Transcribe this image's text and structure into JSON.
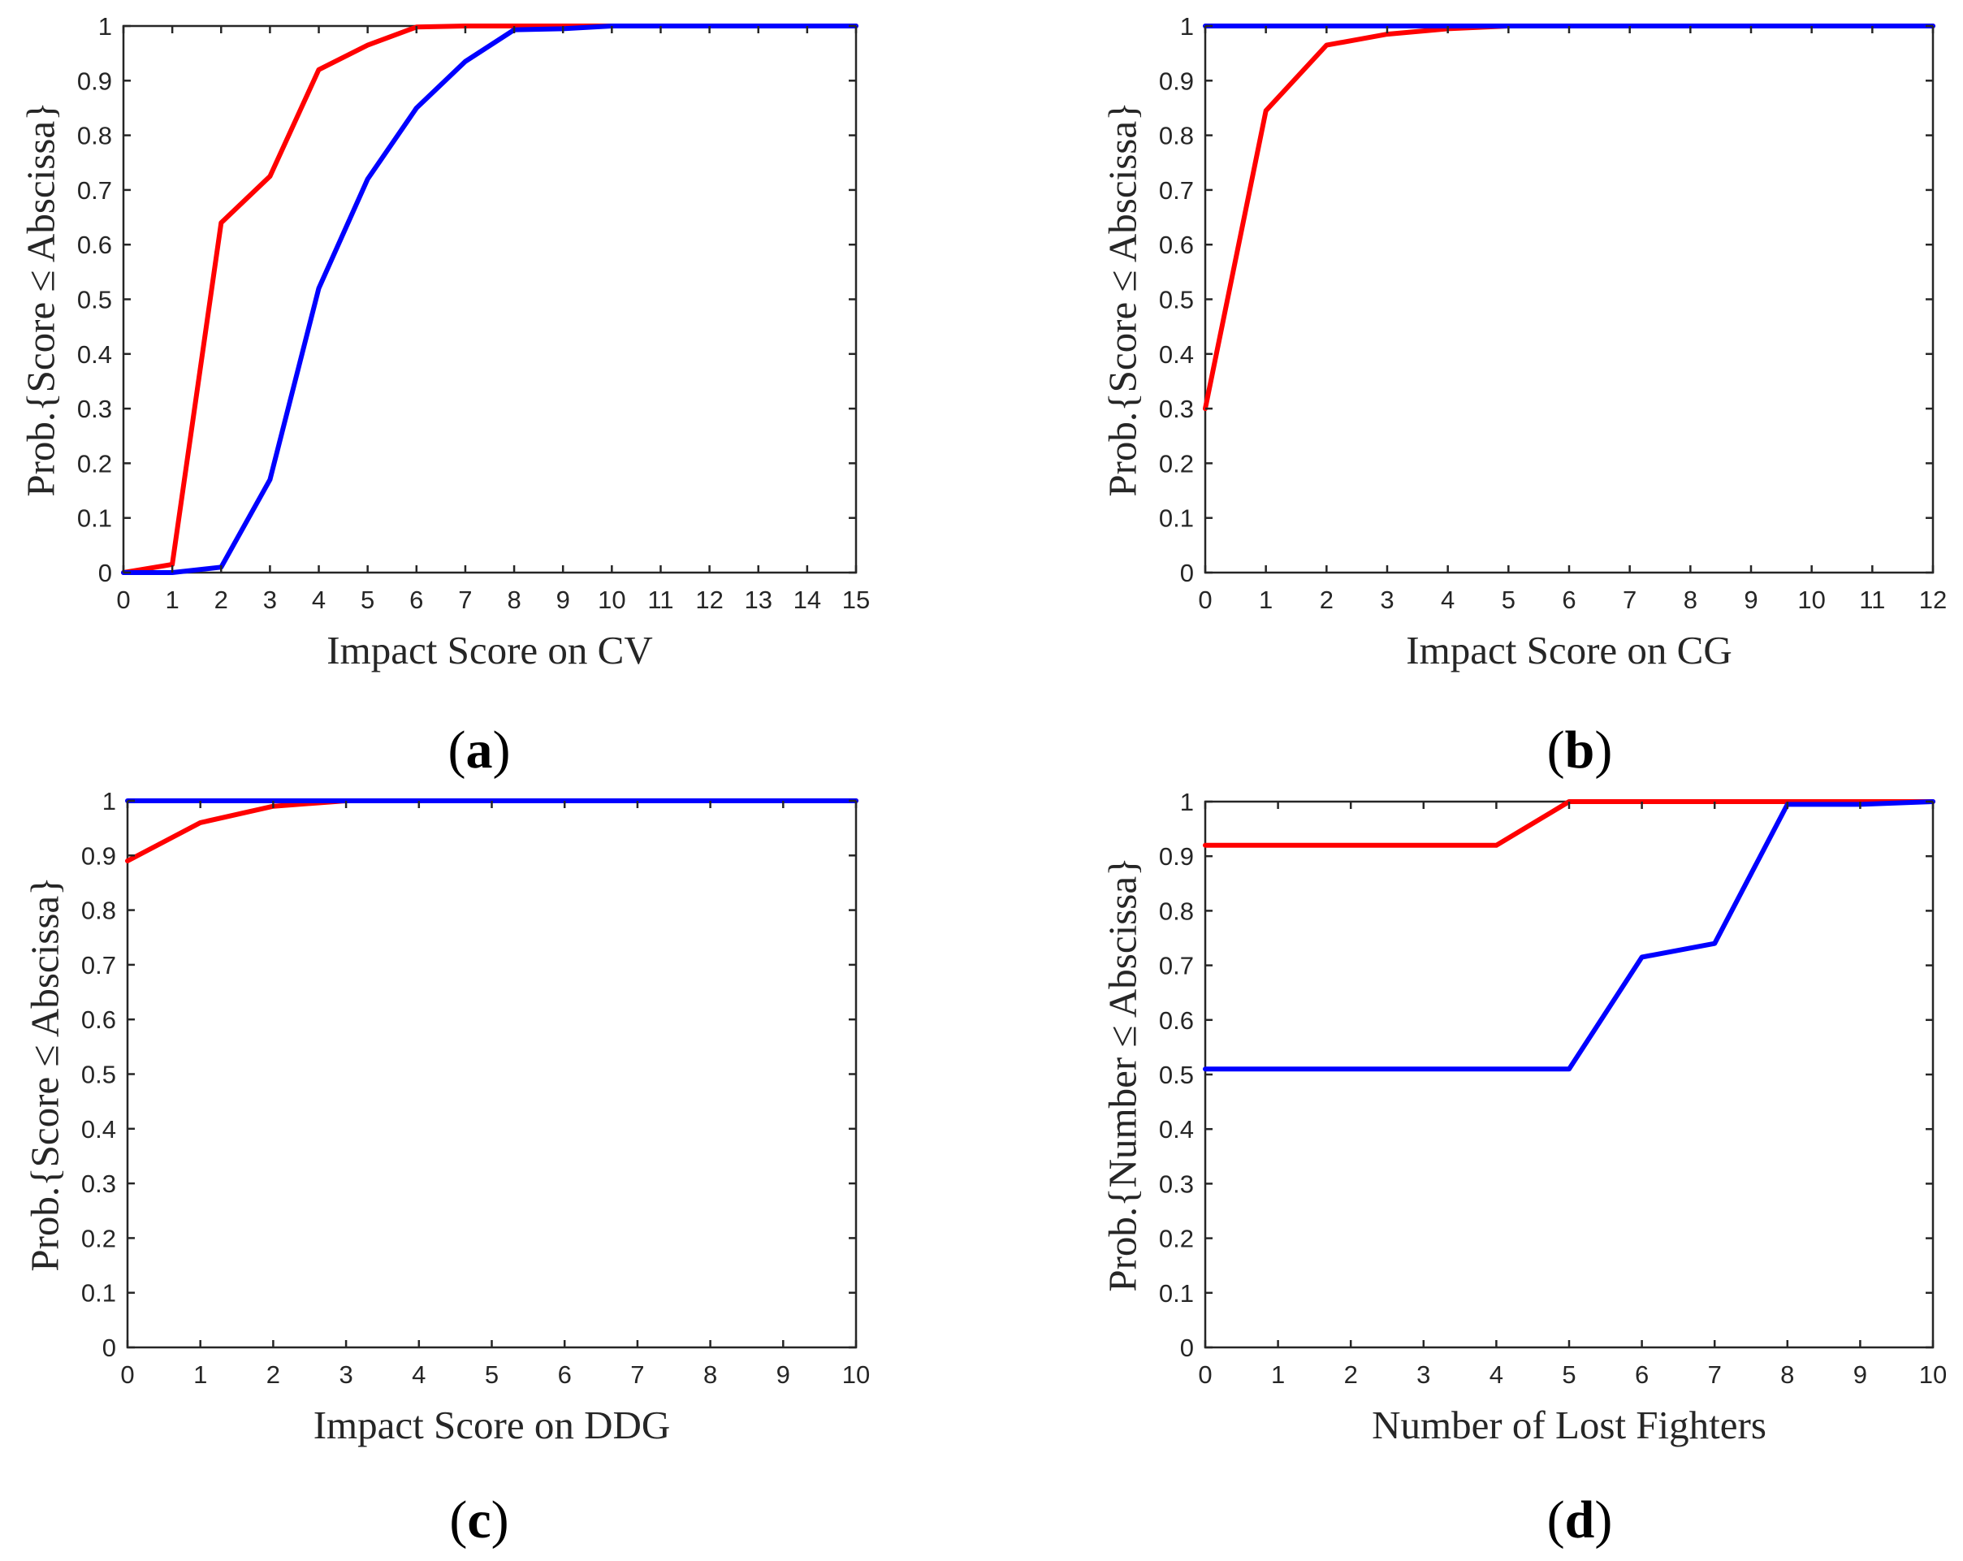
{
  "colors": {
    "red": "#ff0000",
    "blue": "#0000ff",
    "axis": "#262626"
  },
  "chart_data": [
    {
      "type": "line",
      "panel_label": "a",
      "xlabel": "Impact Score on CV",
      "ylabel": "Prob.{Score ≤ Abscissa}",
      "xlim": [
        0,
        15
      ],
      "ylim": [
        0,
        1
      ],
      "xticks": [
        0,
        1,
        2,
        3,
        4,
        5,
        6,
        7,
        8,
        9,
        10,
        11,
        12,
        13,
        14,
        15
      ],
      "yticks": [
        0,
        0.1,
        0.2,
        0.3,
        0.4,
        0.5,
        0.6,
        0.7,
        0.8,
        0.9,
        1
      ],
      "grid": false,
      "series": [
        {
          "name": "red",
          "color": "#ff0000",
          "x": [
            0,
            1,
            2,
            3,
            4,
            5,
            6,
            7,
            8,
            9,
            10,
            11,
            12,
            13,
            14,
            15
          ],
          "values": [
            0,
            0.015,
            0.64,
            0.725,
            0.92,
            0.965,
            0.998,
            1,
            1,
            1,
            1,
            1,
            1,
            1,
            1,
            1
          ]
        },
        {
          "name": "blue",
          "color": "#0000ff",
          "x": [
            0,
            1,
            2,
            3,
            4,
            5,
            6,
            7,
            8,
            9,
            10,
            11,
            12,
            13,
            14,
            15
          ],
          "values": [
            0,
            0,
            0.01,
            0.17,
            0.52,
            0.72,
            0.85,
            0.935,
            0.993,
            0.995,
            1,
            1,
            1,
            1,
            1,
            1
          ]
        }
      ]
    },
    {
      "type": "line",
      "panel_label": "b",
      "xlabel": "Impact Score on CG",
      "ylabel": "Prob.{Score ≤ Abscissa}",
      "xlim": [
        0,
        12
      ],
      "ylim": [
        0,
        1
      ],
      "xticks": [
        0,
        1,
        2,
        3,
        4,
        5,
        6,
        7,
        8,
        9,
        10,
        11,
        12
      ],
      "yticks": [
        0,
        0.1,
        0.2,
        0.3,
        0.4,
        0.5,
        0.6,
        0.7,
        0.8,
        0.9,
        1
      ],
      "grid": false,
      "series": [
        {
          "name": "red",
          "color": "#ff0000",
          "x": [
            0,
            1,
            2,
            3,
            4,
            5,
            6,
            7,
            8,
            9,
            10,
            11,
            12
          ],
          "values": [
            0.3,
            0.845,
            0.965,
            0.985,
            0.995,
            1,
            1,
            1,
            1,
            1,
            1,
            1,
            1
          ]
        },
        {
          "name": "blue",
          "color": "#0000ff",
          "x": [
            0,
            1,
            2,
            3,
            4,
            5,
            6,
            7,
            8,
            9,
            10,
            11,
            12
          ],
          "values": [
            1,
            1,
            1,
            1,
            1,
            1,
            1,
            1,
            1,
            1,
            1,
            1,
            1
          ]
        }
      ]
    },
    {
      "type": "line",
      "panel_label": "c",
      "xlabel": "Impact Score on DDG",
      "ylabel": "Prob.{Score ≤ Abscissa}",
      "xlim": [
        0,
        10
      ],
      "ylim": [
        0,
        1
      ],
      "xticks": [
        0,
        1,
        2,
        3,
        4,
        5,
        6,
        7,
        8,
        9,
        10
      ],
      "yticks": [
        0,
        0.1,
        0.2,
        0.3,
        0.4,
        0.5,
        0.6,
        0.7,
        0.8,
        0.9,
        1
      ],
      "grid": false,
      "series": [
        {
          "name": "red",
          "color": "#ff0000",
          "x": [
            0,
            1,
            2,
            3,
            4,
            5,
            6,
            7,
            8,
            9,
            10
          ],
          "values": [
            0.89,
            0.96,
            0.99,
            1,
            1,
            1,
            1,
            1,
            1,
            1,
            1
          ]
        },
        {
          "name": "blue",
          "color": "#0000ff",
          "x": [
            0,
            1,
            2,
            3,
            4,
            5,
            6,
            7,
            8,
            9,
            10
          ],
          "values": [
            1,
            1,
            1,
            1,
            1,
            1,
            1,
            1,
            1,
            1,
            1
          ]
        }
      ]
    },
    {
      "type": "line",
      "panel_label": "d",
      "xlabel": "Number of Lost Fighters",
      "ylabel": "Prob.{Number ≤ Abscissa}",
      "xlim": [
        0,
        10
      ],
      "ylim": [
        0,
        1
      ],
      "xticks": [
        0,
        1,
        2,
        3,
        4,
        5,
        6,
        7,
        8,
        9,
        10
      ],
      "yticks": [
        0,
        0.1,
        0.2,
        0.3,
        0.4,
        0.5,
        0.6,
        0.7,
        0.8,
        0.9,
        1
      ],
      "grid": false,
      "series": [
        {
          "name": "red",
          "color": "#ff0000",
          "x": [
            0,
            1,
            2,
            3,
            4,
            5,
            6,
            7,
            8,
            9,
            10
          ],
          "values": [
            0.92,
            0.92,
            0.92,
            0.92,
            0.92,
            1,
            1,
            1,
            1,
            1,
            1
          ]
        },
        {
          "name": "blue",
          "color": "#0000ff",
          "x": [
            0,
            1,
            2,
            3,
            4,
            5,
            6,
            7,
            8,
            9,
            10
          ],
          "values": [
            0.51,
            0.51,
            0.51,
            0.51,
            0.51,
            0.51,
            0.715,
            0.74,
            0.995,
            0.995,
            1
          ]
        }
      ]
    }
  ]
}
